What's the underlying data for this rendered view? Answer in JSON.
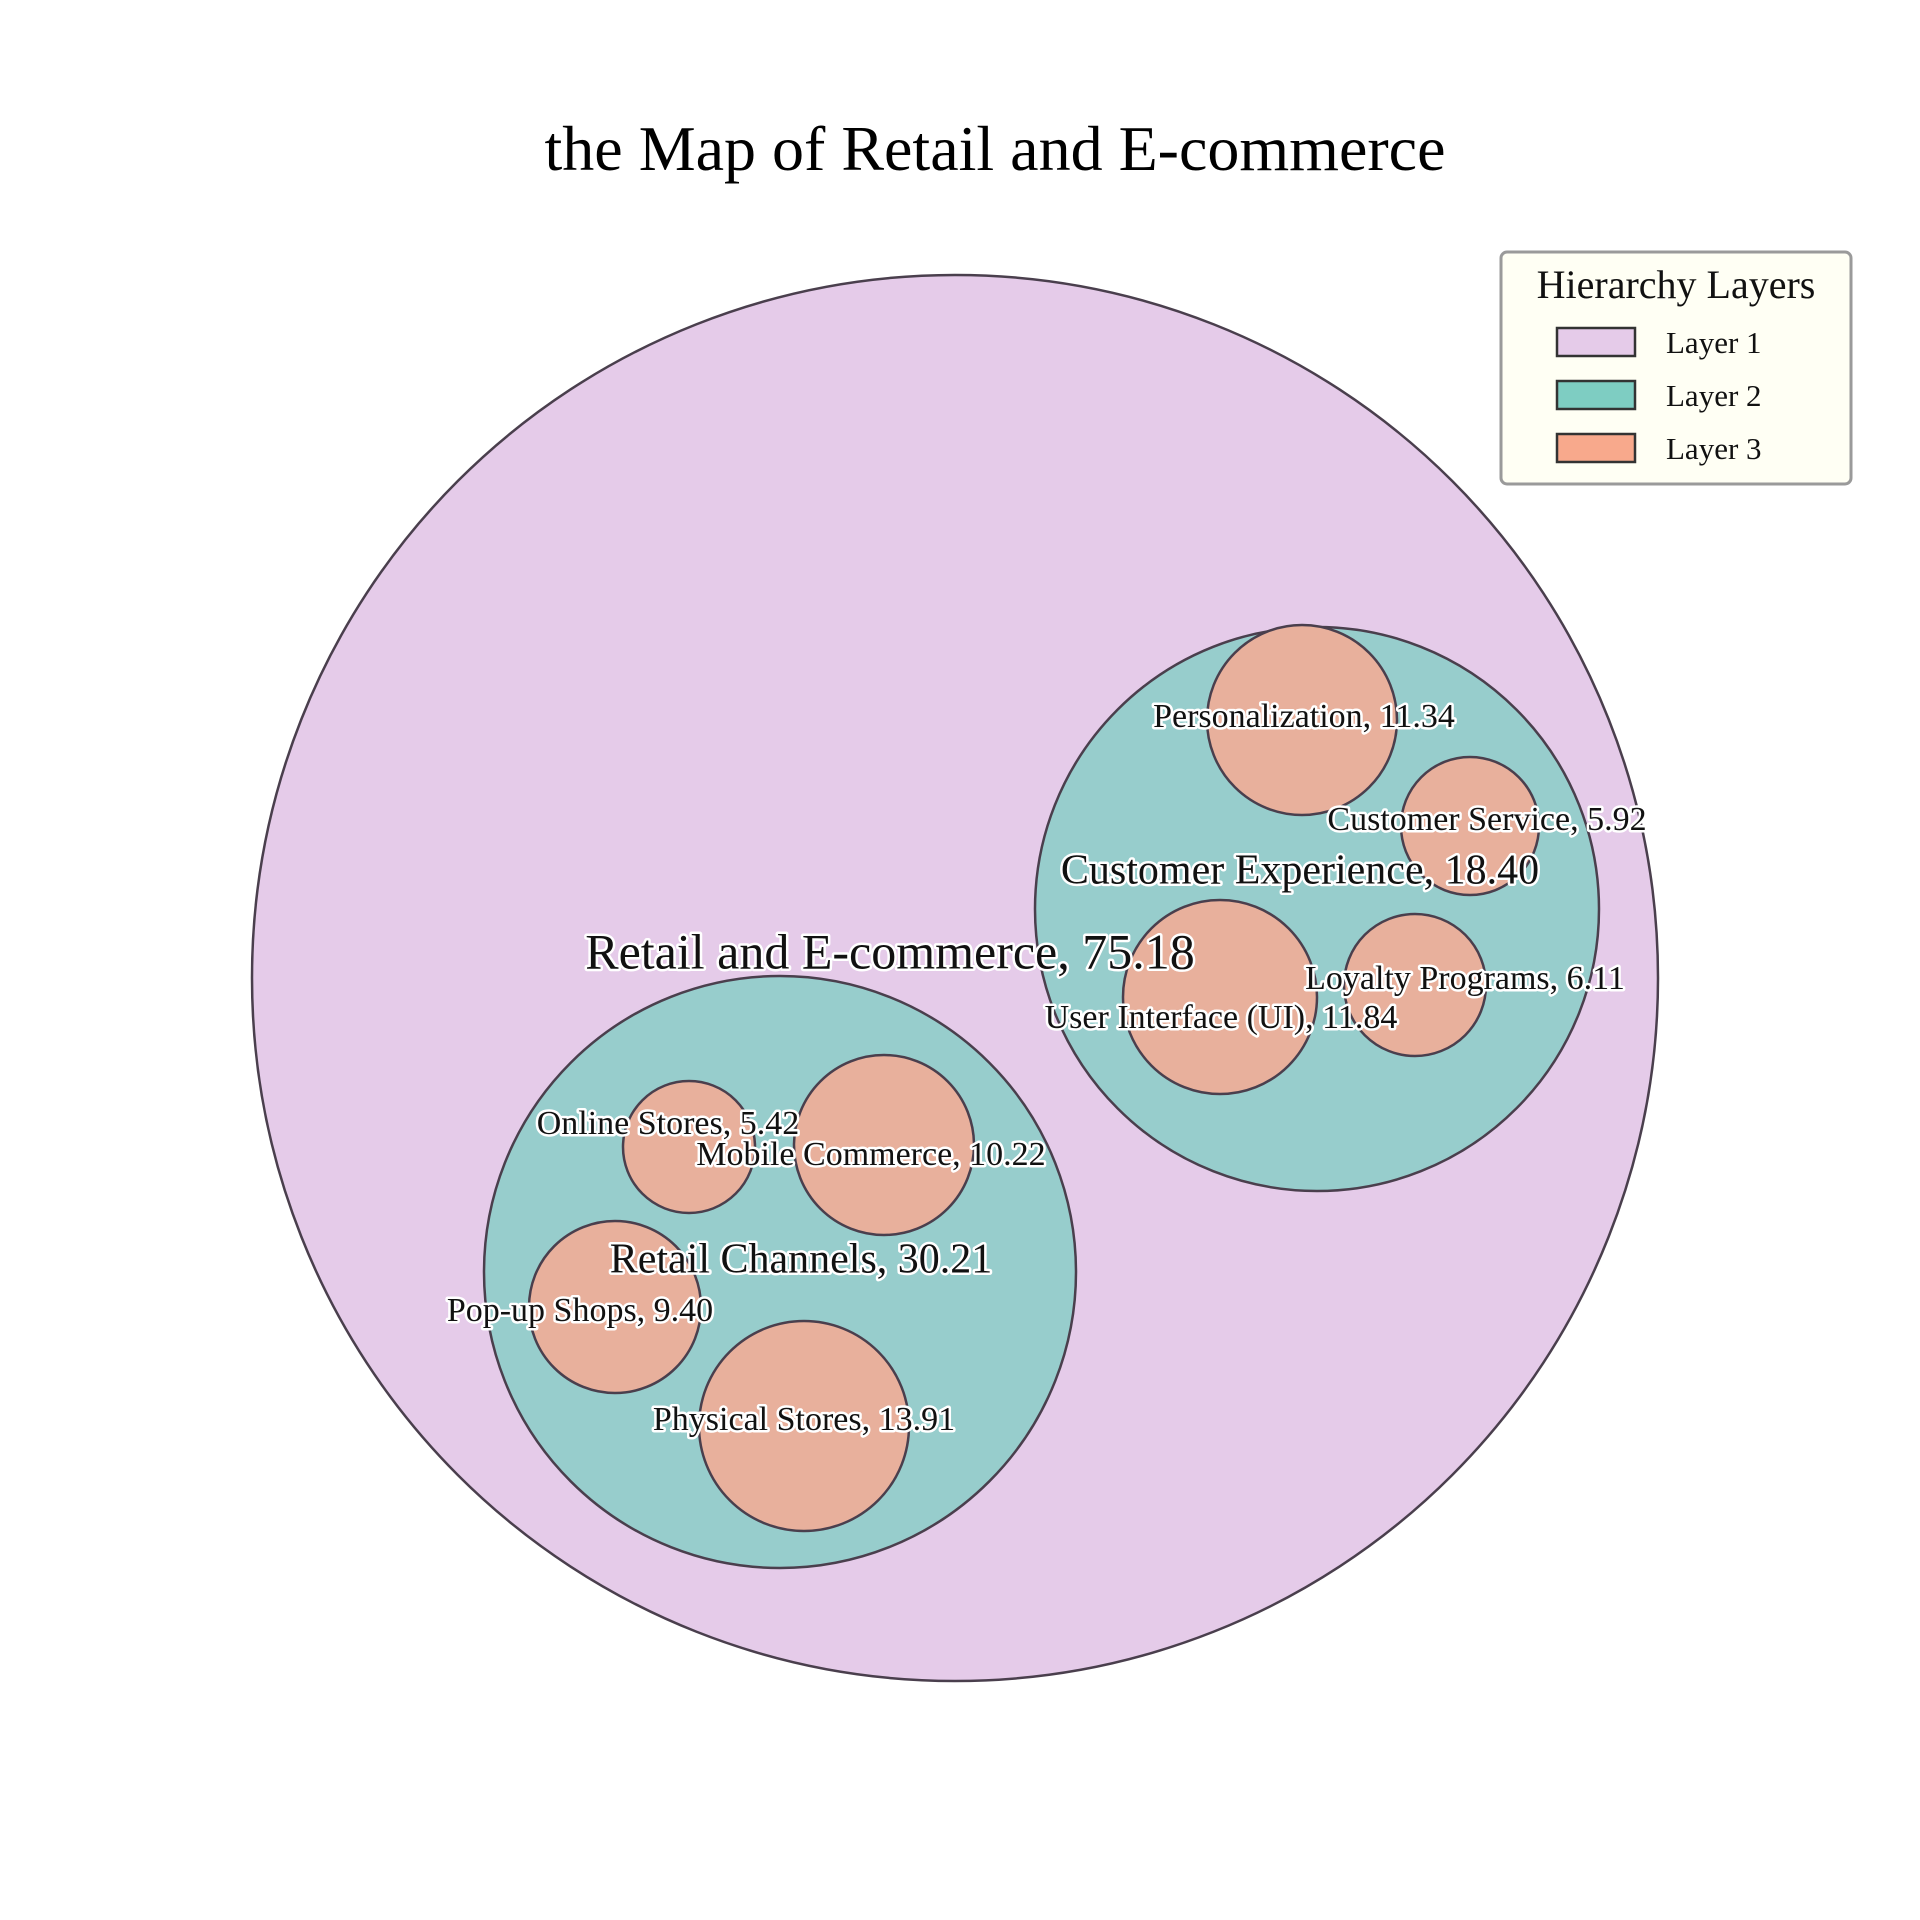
{
  "chart_data": {
    "type": "circle-packing",
    "title": "the Map of Retail and E-commerce",
    "root": {
      "name": "Retail and E-commerce",
      "value": "75.18",
      "layer": 1,
      "children": [
        {
          "name": "Retail Channels",
          "value": "30.21",
          "layer": 2,
          "children": [
            {
              "name": "Online Stores",
              "value": "5.42",
              "layer": 3
            },
            {
              "name": "Mobile Commerce",
              "value": "10.22",
              "layer": 3
            },
            {
              "name": "Pop-up Shops",
              "value": "9.40",
              "layer": 3
            },
            {
              "name": "Physical Stores",
              "value": "13.91",
              "layer": 3
            }
          ]
        },
        {
          "name": "Customer Experience",
          "value": "18.40",
          "layer": 2,
          "children": [
            {
              "name": "Personalization",
              "value": "11.34",
              "layer": 3
            },
            {
              "name": "Customer Service",
              "value": "5.92",
              "layer": 3
            },
            {
              "name": "User Interface (UI)",
              "value": "11.84",
              "layer": 3
            },
            {
              "name": "Loyalty Programs",
              "value": "6.11",
              "layer": 3
            }
          ]
        }
      ]
    },
    "legend": {
      "title": "Hierarchy Layers",
      "position": "top-right",
      "items": [
        {
          "label": "Layer 1",
          "color": "#e5cbe9"
        },
        {
          "label": "Layer 2",
          "color": "#97cdcc"
        },
        {
          "label": "Layer 3",
          "color": "#e8b09c"
        }
      ]
    },
    "colors": {
      "layer1": "#e5cbe9",
      "layer2": "#97cdcc",
      "layer3": "#e8b09c",
      "legend_layer2": "#7ecdc2",
      "legend_layer3": "#f8a98c",
      "stroke": "#4a3f4d",
      "legend_background": "#fffff4"
    }
  }
}
